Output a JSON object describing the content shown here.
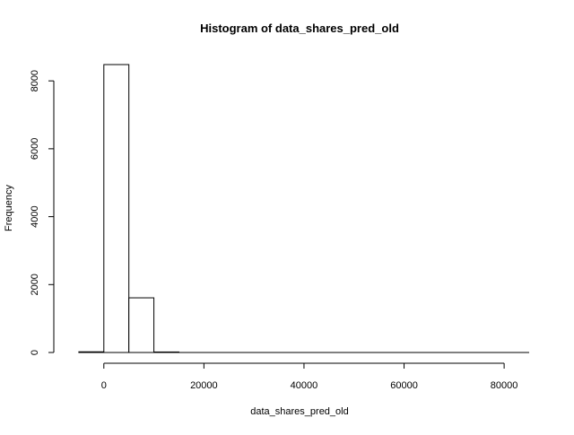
{
  "chart_data": {
    "type": "bar",
    "title": "Histogram of data_shares_pred_old",
    "xlabel": "data_shares_pred_old",
    "ylabel": "Frequency",
    "bins": [
      {
        "start": -5000,
        "end": 0,
        "count": 20
      },
      {
        "start": 0,
        "end": 5000,
        "count": 8480
      },
      {
        "start": 5000,
        "end": 10000,
        "count": 1610
      },
      {
        "start": 10000,
        "end": 15000,
        "count": 15
      },
      {
        "start": 15000,
        "end": 20000,
        "count": 2
      },
      {
        "start": 20000,
        "end": 25000,
        "count": 1
      },
      {
        "start": 25000,
        "end": 30000,
        "count": 1
      },
      {
        "start": 30000,
        "end": 35000,
        "count": 1
      },
      {
        "start": 35000,
        "end": 40000,
        "count": 0
      },
      {
        "start": 40000,
        "end": 45000,
        "count": 1
      },
      {
        "start": 45000,
        "end": 50000,
        "count": 0
      },
      {
        "start": 50000,
        "end": 55000,
        "count": 1
      },
      {
        "start": 55000,
        "end": 60000,
        "count": 0
      },
      {
        "start": 60000,
        "end": 65000,
        "count": 1
      },
      {
        "start": 65000,
        "end": 70000,
        "count": 0
      },
      {
        "start": 70000,
        "end": 75000,
        "count": 1
      },
      {
        "start": 75000,
        "end": 80000,
        "count": 0
      },
      {
        "start": 80000,
        "end": 85000,
        "count": 1
      }
    ],
    "xticks": [
      0,
      20000,
      40000,
      60000,
      80000
    ],
    "yticks": [
      0,
      2000,
      4000,
      6000,
      8000
    ],
    "xlim": [
      -10000,
      85000
    ],
    "ylim": [
      0,
      8480
    ],
    "grid": false,
    "colors": {
      "bar_fill": "#ffffff",
      "bar_stroke": "#000000",
      "axis": "#000000"
    }
  }
}
